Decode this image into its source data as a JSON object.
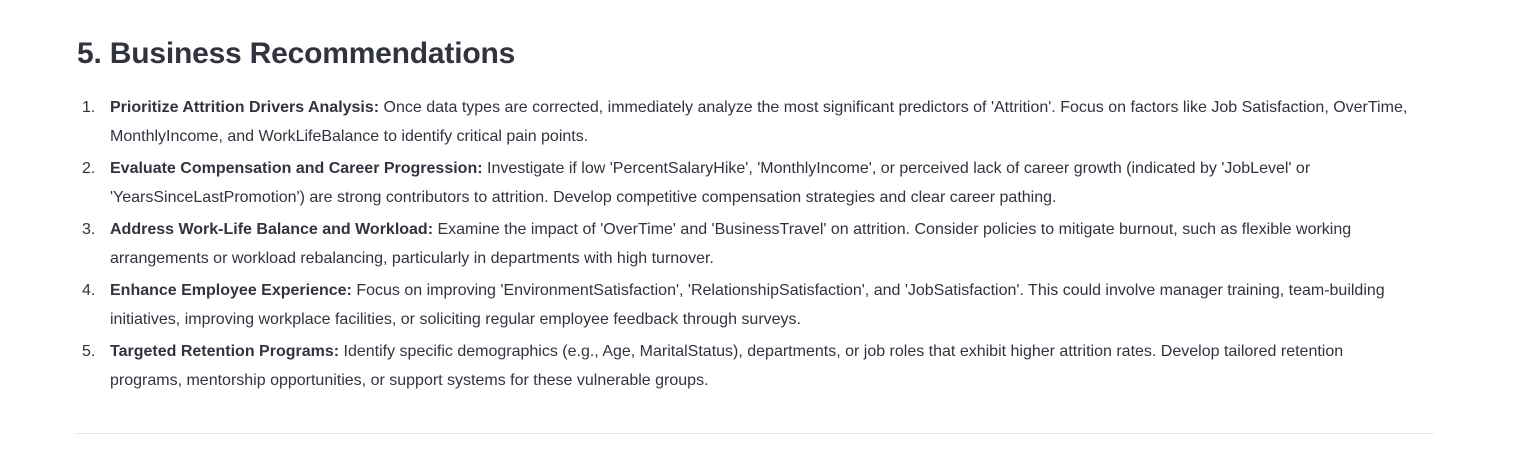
{
  "section": {
    "title": "5. Business Recommendations"
  },
  "recommendations": [
    {
      "number": "1.",
      "title": "Prioritize Attrition Drivers Analysis:",
      "text": "Once data types are corrected, immediately analyze the most significant predictors of 'Attrition'. Focus on factors like Job Satisfaction, OverTime, MonthlyIncome, and WorkLifeBalance to identify critical pain points."
    },
    {
      "number": "2.",
      "title": "Evaluate Compensation and Career Progression:",
      "text": "Investigate if low 'PercentSalaryHike', 'MonthlyIncome', or perceived lack of career growth (indicated by 'JobLevel' or 'YearsSinceLastPromotion') are strong contributors to attrition. Develop competitive compensation strategies and clear career pathing."
    },
    {
      "number": "3.",
      "title": "Address Work-Life Balance and Workload:",
      "text": "Examine the impact of 'OverTime' and 'BusinessTravel' on attrition. Consider policies to mitigate burnout, such as flexible working arrangements or workload rebalancing, particularly in departments with high turnover."
    },
    {
      "number": "4.",
      "title": "Enhance Employee Experience:",
      "text": "Focus on improving 'EnvironmentSatisfaction', 'RelationshipSatisfaction', and 'JobSatisfaction'. This could involve manager training, team-building initiatives, improving workplace facilities, or soliciting regular employee feedback through surveys."
    },
    {
      "number": "5.",
      "title": "Targeted Retention Programs:",
      "text": "Identify specific demographics (e.g., Age, MaritalStatus), departments, or job roles that exhibit higher attrition rates. Develop tailored retention programs, mentorship opportunities, or support systems for these vulnerable groups."
    }
  ]
}
